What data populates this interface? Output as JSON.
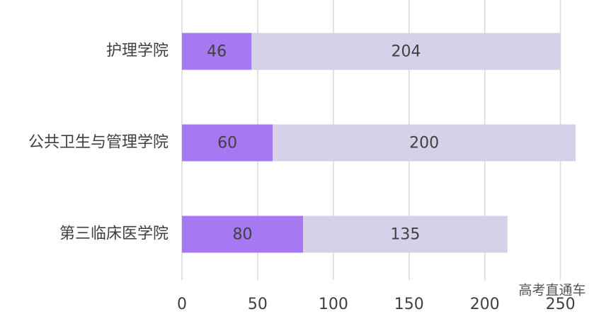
{
  "chart_data": {
    "type": "stacked-barh",
    "categories": [
      "护理学院",
      "公共卫生与管理学院",
      "第三临床医学院"
    ],
    "series": [
      {
        "color": "#a679f3",
        "values": [
          46,
          60,
          80
        ]
      },
      {
        "color": "#d7d0e9",
        "values": [
          204,
          200,
          135
        ]
      }
    ],
    "xlim": [
      0,
      260
    ],
    "xticks": [
      0,
      50,
      100,
      150,
      200,
      250
    ],
    "grid": true,
    "annotation": "高考直通车"
  }
}
